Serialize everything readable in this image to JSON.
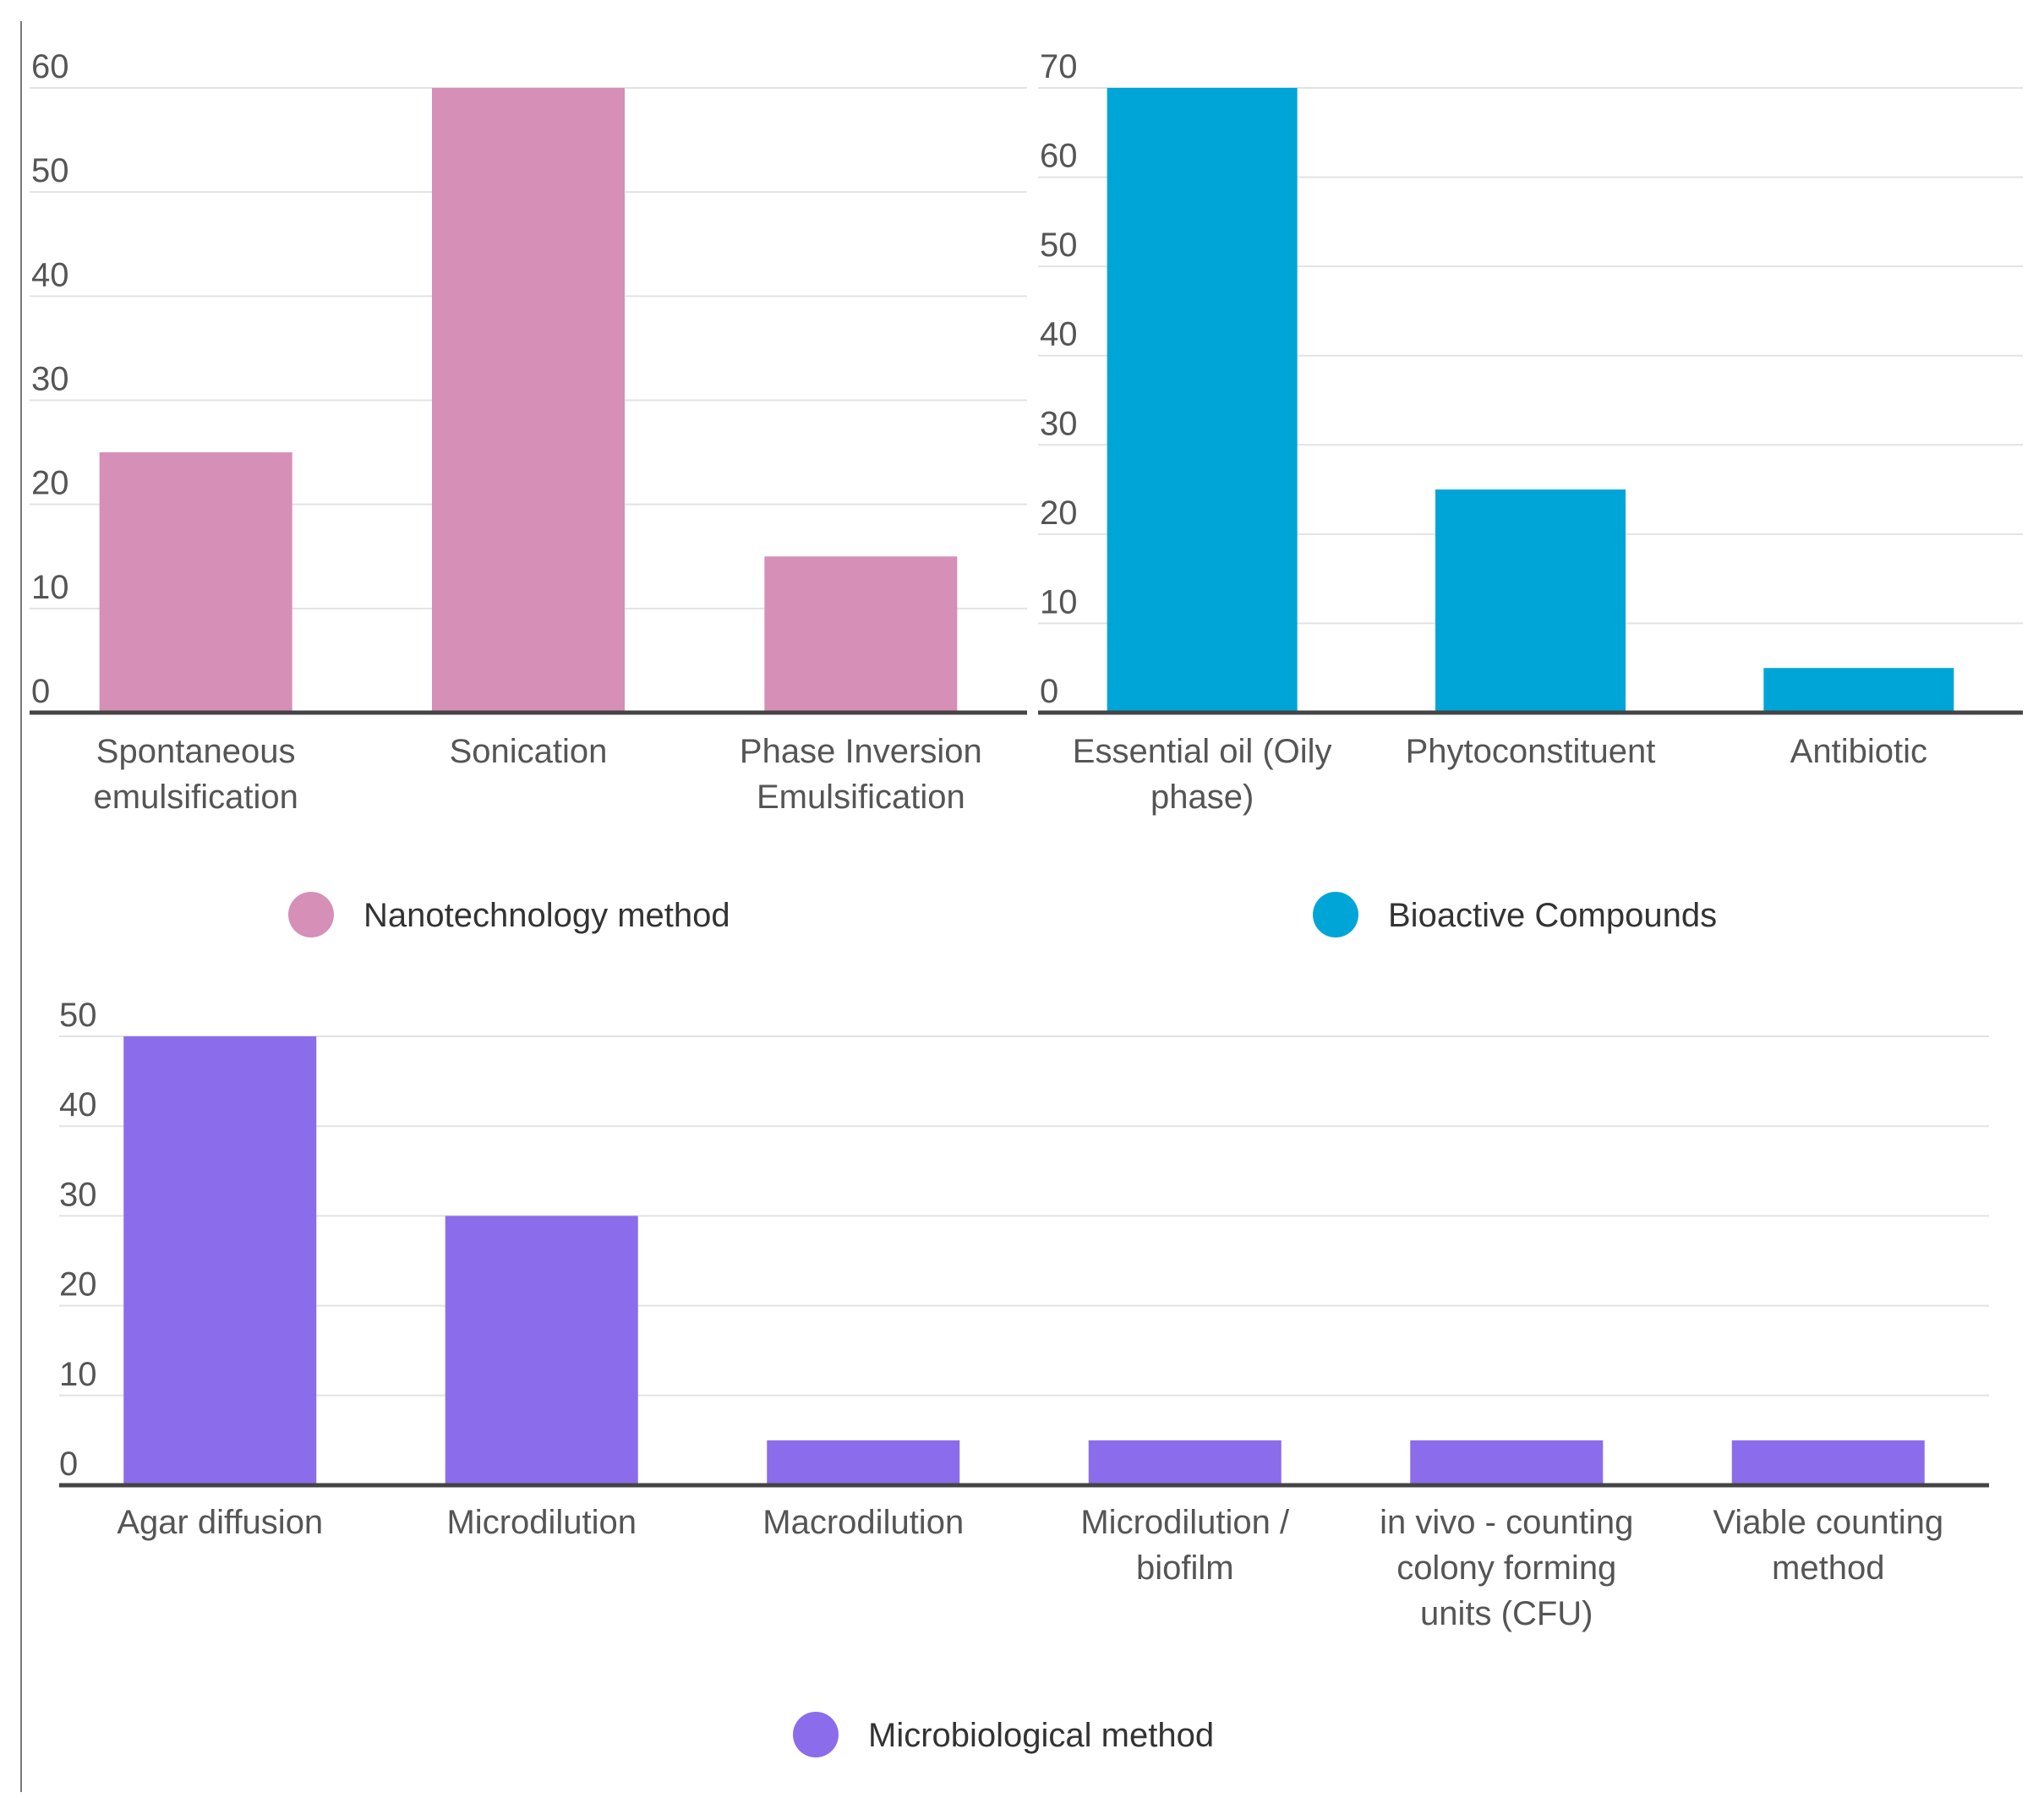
{
  "chart_data": [
    {
      "type": "bar",
      "categories": [
        "Spontaneous emulsification",
        "Sonication",
        "Phase Inversion Emulsification"
      ],
      "category_lines": [
        [
          "Spontaneous",
          "emulsification"
        ],
        [
          "Sonication"
        ],
        [
          "Phase Inversion",
          "Emulsification"
        ]
      ],
      "series": [
        {
          "name": "Nanotechnology method",
          "values": [
            25,
            60,
            15
          ]
        }
      ],
      "color": "#d68fb6",
      "ylim": [
        0,
        60
      ],
      "yticks": [
        0,
        10,
        20,
        30,
        40,
        50,
        60
      ],
      "legend": "bottom",
      "grid": true
    },
    {
      "type": "bar",
      "categories": [
        "Essential oil (Oily phase)",
        "Phytoconstituent",
        "Antibiotic"
      ],
      "category_lines": [
        [
          "Essential oil (Oily",
          "phase)"
        ],
        [
          "Phytoconstituent"
        ],
        [
          "Antibiotic"
        ]
      ],
      "series": [
        {
          "name": "Bioactive Compounds",
          "values": [
            70,
            25,
            5
          ]
        }
      ],
      "color": "#00a5d8",
      "ylim": [
        0,
        70
      ],
      "yticks": [
        0,
        10,
        20,
        30,
        40,
        50,
        60,
        70
      ],
      "legend": "bottom",
      "grid": true
    },
    {
      "type": "bar",
      "categories": [
        "Agar diffusion",
        "Microdilution",
        "Macrodilution",
        "Microdilution / biofilm",
        "in vivo - counting colony forming units (CFU)",
        "Viable counting method"
      ],
      "category_lines": [
        [
          "Agar diffusion"
        ],
        [
          "Microdilution"
        ],
        [
          "Macrodilution"
        ],
        [
          "Microdilution /",
          "biofilm"
        ],
        [
          "in vivo - counting",
          "colony forming",
          "units (CFU)"
        ],
        [
          "Viable counting",
          "method"
        ]
      ],
      "series": [
        {
          "name": "Microbiological method",
          "values": [
            50,
            30,
            5,
            5,
            5,
            5
          ]
        }
      ],
      "color": "#8b6ceb",
      "ylim": [
        0,
        50
      ],
      "yticks": [
        0,
        10,
        20,
        30,
        40,
        50
      ],
      "legend": "bottom",
      "grid": true
    }
  ]
}
